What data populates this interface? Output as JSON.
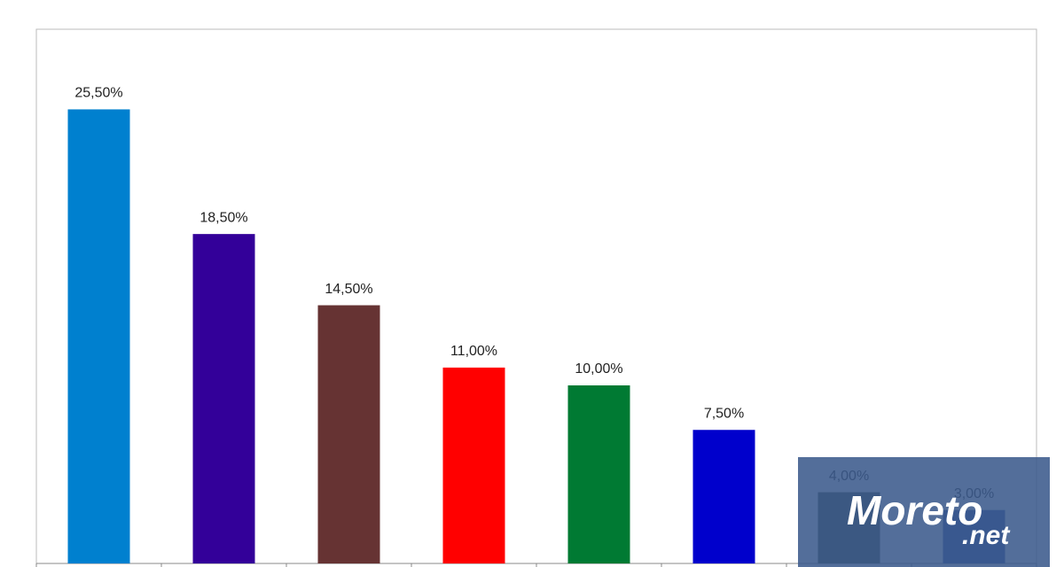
{
  "chart_data": {
    "type": "bar",
    "categories": [
      null,
      null,
      null,
      null,
      null,
      null,
      null,
      null
    ],
    "values": [
      25.5,
      18.5,
      14.5,
      11,
      10,
      7.5,
      4,
      3
    ],
    "value_labels": [
      "25,50%",
      "18,50%",
      "14,50%",
      "11,00%",
      "10,00%",
      "7,50%",
      "4,00%",
      "3,00%"
    ],
    "colors": [
      "#0080cf",
      "#330099",
      "#663333",
      "#ff0000",
      "#007a33",
      "#0000cc",
      "#3d4a3d",
      "#2a4aa0"
    ],
    "ylim": [
      0,
      30
    ]
  },
  "watermark": [
    "Moreto",
    ".net"
  ]
}
